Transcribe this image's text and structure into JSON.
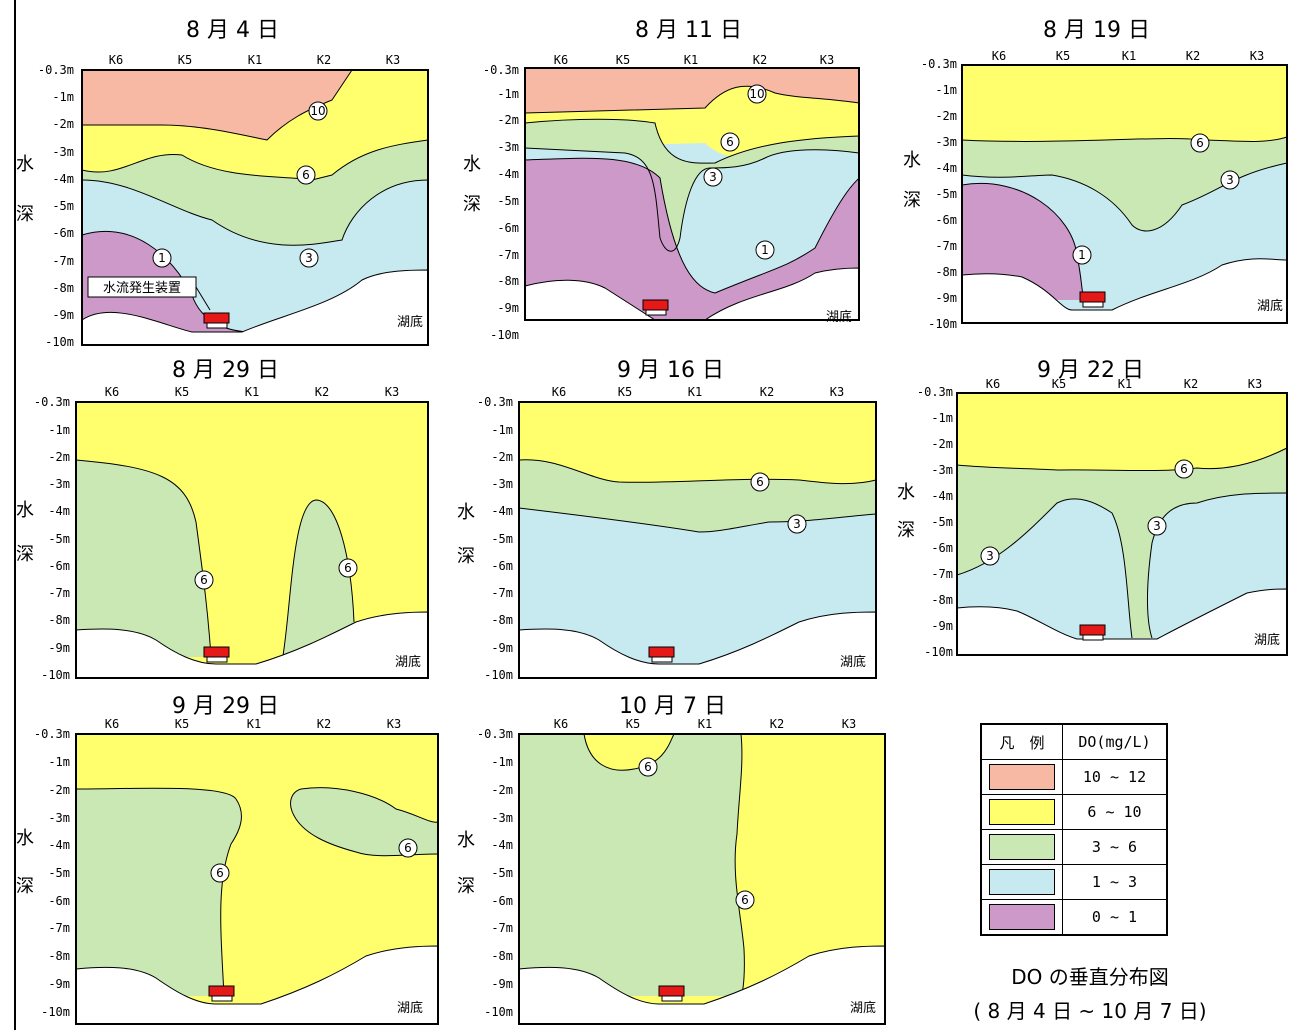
{
  "colors": {
    "c10_12": "#f7b9a3",
    "c6_10": "#ffff6e",
    "c3_6": "#c9e8b3",
    "c1_3": "#c7e9f0",
    "c0_1": "#cc99c9",
    "device": "#e61919"
  },
  "axis": {
    "stations": [
      "K6",
      "K5",
      "K1",
      "K2",
      "K3"
    ],
    "depth_labels": [
      "-0.3m",
      "-1m",
      "-2m",
      "-3m",
      "-4m",
      "-5m",
      "-6m",
      "-7m",
      "-8m",
      "-9m",
      "-10m"
    ],
    "side_label_1": "水",
    "side_label_2": "深",
    "lakebed": "湖底"
  },
  "panels": [
    {
      "title": "8 月 4 日",
      "contour_labels": [
        "10",
        "6",
        "3",
        "1"
      ],
      "device_label": "水流発生装置"
    },
    {
      "title": "8 月 11 日",
      "contour_labels": [
        "10",
        "6",
        "3",
        "1"
      ]
    },
    {
      "title": "8 月 19 日",
      "contour_labels": [
        "6",
        "3",
        "1"
      ]
    },
    {
      "title": "8 月 29 日",
      "contour_labels": [
        "6",
        "6"
      ]
    },
    {
      "title": "9 月 16 日",
      "contour_labels": [
        "6",
        "3"
      ]
    },
    {
      "title": "9 月 22 日",
      "contour_labels": [
        "6",
        "3",
        "3"
      ]
    },
    {
      "title": "9 月 29 日",
      "contour_labels": [
        "6",
        "6"
      ]
    },
    {
      "title": "10 月 7 日",
      "contour_labels": [
        "6",
        "6"
      ]
    }
  ],
  "legend": {
    "h1": "凡　例",
    "h2": "DO(mg/L)",
    "rows": [
      {
        "range": "10 ~ 12",
        "color": "#f7b9a3"
      },
      {
        "range": "6 ~ 10",
        "color": "#ffff6e"
      },
      {
        "range": "3 ~ 6",
        "color": "#c9e8b3"
      },
      {
        "range": "1 ~ 3",
        "color": "#c7e9f0"
      },
      {
        "range": "0 ~ 1",
        "color": "#cc99c9"
      }
    ]
  },
  "caption": {
    "line1": "DO の垂直分布図",
    "line2": "( 8 月 4 日 ~ 10 月 7 日)"
  }
}
